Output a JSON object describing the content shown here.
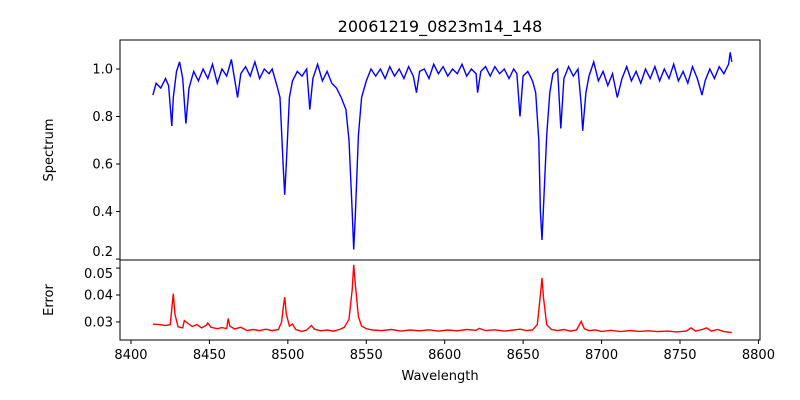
{
  "chart_data": {
    "type": "line",
    "title": "20061219_0823m14_148",
    "xlabel": "Wavelength",
    "xlim": [
      8393,
      8801
    ],
    "xticks": [
      8400,
      8450,
      8500,
      8550,
      8600,
      8650,
      8700,
      8750,
      8800
    ],
    "panels": [
      {
        "name": "spectrum",
        "ylabel": "Spectrum",
        "ylim": [
          0.196,
          1.122
        ],
        "yticks": [
          0.2,
          0.4,
          0.6,
          0.8,
          1.0
        ],
        "ytick_labels": [
          "0.2",
          "0.4",
          "0.6",
          "0.8",
          "1.0"
        ],
        "color": "#0000ff",
        "points": [
          [
            8414,
            0.89
          ],
          [
            8416,
            0.94
          ],
          [
            8419,
            0.92
          ],
          [
            8422,
            0.96
          ],
          [
            8424,
            0.93
          ],
          [
            8426,
            0.76
          ],
          [
            8427,
            0.88
          ],
          [
            8429,
            0.99
          ],
          [
            8431,
            1.03
          ],
          [
            8433,
            0.96
          ],
          [
            8435,
            0.77
          ],
          [
            8437,
            0.92
          ],
          [
            8440,
            0.99
          ],
          [
            8443,
            0.95
          ],
          [
            8446,
            1.0
          ],
          [
            8449,
            0.96
          ],
          [
            8452,
            1.02
          ],
          [
            8455,
            0.94
          ],
          [
            8458,
            1.0
          ],
          [
            8461,
            0.97
          ],
          [
            8464,
            1.04
          ],
          [
            8466,
            0.96
          ],
          [
            8468,
            0.88
          ],
          [
            8470,
            0.98
          ],
          [
            8473,
            1.01
          ],
          [
            8476,
            0.97
          ],
          [
            8479,
            1.03
          ],
          [
            8482,
            0.96
          ],
          [
            8485,
            1.0
          ],
          [
            8488,
            0.98
          ],
          [
            8490,
            1.0
          ],
          [
            8493,
            0.93
          ],
          [
            8495,
            0.88
          ],
          [
            8497,
            0.6
          ],
          [
            8498,
            0.47
          ],
          [
            8499,
            0.6
          ],
          [
            8501,
            0.88
          ],
          [
            8503,
            0.95
          ],
          [
            8506,
            0.99
          ],
          [
            8509,
            0.97
          ],
          [
            8512,
            1.0
          ],
          [
            8514,
            0.83
          ],
          [
            8516,
            0.96
          ],
          [
            8519,
            1.02
          ],
          [
            8522,
            0.95
          ],
          [
            8525,
            0.99
          ],
          [
            8528,
            0.94
          ],
          [
            8531,
            0.92
          ],
          [
            8534,
            0.88
          ],
          [
            8537,
            0.83
          ],
          [
            8539,
            0.7
          ],
          [
            8541,
            0.4
          ],
          [
            8542,
            0.24
          ],
          [
            8543,
            0.38
          ],
          [
            8545,
            0.72
          ],
          [
            8547,
            0.88
          ],
          [
            8550,
            0.95
          ],
          [
            8553,
            1.0
          ],
          [
            8556,
            0.97
          ],
          [
            8559,
            1.0
          ],
          [
            8562,
            0.96
          ],
          [
            8565,
            1.01
          ],
          [
            8568,
            0.97
          ],
          [
            8571,
            1.0
          ],
          [
            8574,
            0.96
          ],
          [
            8577,
            1.01
          ],
          [
            8580,
            0.97
          ],
          [
            8582,
            0.9
          ],
          [
            8584,
            0.99
          ],
          [
            8587,
            1.0
          ],
          [
            8590,
            0.96
          ],
          [
            8593,
            1.02
          ],
          [
            8596,
            0.98
          ],
          [
            8599,
            1.01
          ],
          [
            8602,
            0.97
          ],
          [
            8605,
            1.0
          ],
          [
            8608,
            0.98
          ],
          [
            8611,
            1.02
          ],
          [
            8614,
            0.97
          ],
          [
            8617,
            1.0
          ],
          [
            8620,
            0.98
          ],
          [
            8621,
            0.9
          ],
          [
            8623,
            0.99
          ],
          [
            8626,
            1.01
          ],
          [
            8629,
            0.97
          ],
          [
            8632,
            1.01
          ],
          [
            8635,
            0.98
          ],
          [
            8638,
            1.0
          ],
          [
            8641,
            0.96
          ],
          [
            8644,
            1.0
          ],
          [
            8646,
            0.98
          ],
          [
            8648,
            0.8
          ],
          [
            8650,
            0.97
          ],
          [
            8653,
            0.99
          ],
          [
            8656,
            0.95
          ],
          [
            8658,
            0.9
          ],
          [
            8660,
            0.7
          ],
          [
            8661,
            0.4
          ],
          [
            8662,
            0.28
          ],
          [
            8663,
            0.42
          ],
          [
            8665,
            0.72
          ],
          [
            8667,
            0.9
          ],
          [
            8669,
            0.98
          ],
          [
            8672,
            1.0
          ],
          [
            8674,
            0.75
          ],
          [
            8676,
            0.96
          ],
          [
            8679,
            1.01
          ],
          [
            8682,
            0.97
          ],
          [
            8685,
            1.0
          ],
          [
            8687,
            0.85
          ],
          [
            8688,
            0.74
          ],
          [
            8690,
            0.9
          ],
          [
            8692,
            0.97
          ],
          [
            8695,
            1.03
          ],
          [
            8698,
            0.95
          ],
          [
            8701,
            0.99
          ],
          [
            8704,
            0.93
          ],
          [
            8707,
            0.98
          ],
          [
            8710,
            0.88
          ],
          [
            8713,
            0.96
          ],
          [
            8716,
            1.01
          ],
          [
            8719,
            0.95
          ],
          [
            8722,
            0.99
          ],
          [
            8725,
            0.94
          ],
          [
            8728,
            1.0
          ],
          [
            8731,
            0.96
          ],
          [
            8734,
            1.01
          ],
          [
            8737,
            0.95
          ],
          [
            8740,
            1.0
          ],
          [
            8743,
            0.96
          ],
          [
            8746,
            1.02
          ],
          [
            8749,
            0.95
          ],
          [
            8752,
            0.99
          ],
          [
            8755,
            0.94
          ],
          [
            8758,
            1.01
          ],
          [
            8761,
            0.96
          ],
          [
            8764,
            0.89
          ],
          [
            8766,
            0.95
          ],
          [
            8769,
            1.0
          ],
          [
            8772,
            0.96
          ],
          [
            8775,
            1.01
          ],
          [
            8778,
            0.98
          ],
          [
            8781,
            1.02
          ],
          [
            8782,
            1.07
          ],
          [
            8783,
            1.03
          ]
        ]
      },
      {
        "name": "error",
        "ylabel": "Error",
        "ylim": [
          0.0233,
          0.053
        ],
        "yticks": [
          0.03,
          0.04,
          0.05
        ],
        "ytick_labels": [
          "0.03",
          "0.04",
          "0.05"
        ],
        "color": "#ff0000",
        "points": [
          [
            8414,
            0.0292
          ],
          [
            8418,
            0.029
          ],
          [
            8422,
            0.0287
          ],
          [
            8425,
            0.029
          ],
          [
            8426,
            0.035
          ],
          [
            8427,
            0.0405
          ],
          [
            8428,
            0.033
          ],
          [
            8430,
            0.0282
          ],
          [
            8433,
            0.0278
          ],
          [
            8434,
            0.0305
          ],
          [
            8436,
            0.0296
          ],
          [
            8439,
            0.0283
          ],
          [
            8442,
            0.029
          ],
          [
            8445,
            0.0278
          ],
          [
            8448,
            0.0288
          ],
          [
            8449,
            0.0296
          ],
          [
            8451,
            0.028
          ],
          [
            8455,
            0.0275
          ],
          [
            8458,
            0.0279
          ],
          [
            8461,
            0.0275
          ],
          [
            8462,
            0.0313
          ],
          [
            8463,
            0.0285
          ],
          [
            8466,
            0.0274
          ],
          [
            8470,
            0.028
          ],
          [
            8474,
            0.0268
          ],
          [
            8478,
            0.0272
          ],
          [
            8482,
            0.0268
          ],
          [
            8486,
            0.0273
          ],
          [
            8490,
            0.0268
          ],
          [
            8494,
            0.0272
          ],
          [
            8496,
            0.03
          ],
          [
            8497,
            0.035
          ],
          [
            8498,
            0.0392
          ],
          [
            8499,
            0.033
          ],
          [
            8501,
            0.0285
          ],
          [
            8503,
            0.0292
          ],
          [
            8505,
            0.0272
          ],
          [
            8509,
            0.0265
          ],
          [
            8512,
            0.027
          ],
          [
            8515,
            0.0287
          ],
          [
            8517,
            0.0273
          ],
          [
            8521,
            0.0267
          ],
          [
            8525,
            0.027
          ],
          [
            8529,
            0.0266
          ],
          [
            8533,
            0.0272
          ],
          [
            8536,
            0.028
          ],
          [
            8539,
            0.031
          ],
          [
            8541,
            0.042
          ],
          [
            8542,
            0.0512
          ],
          [
            8543,
            0.044
          ],
          [
            8545,
            0.032
          ],
          [
            8547,
            0.0285
          ],
          [
            8550,
            0.0275
          ],
          [
            8554,
            0.027
          ],
          [
            8560,
            0.0268
          ],
          [
            8566,
            0.0272
          ],
          [
            8572,
            0.0266
          ],
          [
            8578,
            0.027
          ],
          [
            8584,
            0.0267
          ],
          [
            8590,
            0.0271
          ],
          [
            8596,
            0.0266
          ],
          [
            8602,
            0.027
          ],
          [
            8608,
            0.0267
          ],
          [
            8614,
            0.0272
          ],
          [
            8620,
            0.0269
          ],
          [
            8622,
            0.0276
          ],
          [
            8626,
            0.0268
          ],
          [
            8632,
            0.0271
          ],
          [
            8638,
            0.0266
          ],
          [
            8644,
            0.027
          ],
          [
            8648,
            0.0273
          ],
          [
            8652,
            0.0268
          ],
          [
            8656,
            0.027
          ],
          [
            8659,
            0.029
          ],
          [
            8661,
            0.04
          ],
          [
            8662,
            0.0463
          ],
          [
            8663,
            0.039
          ],
          [
            8665,
            0.029
          ],
          [
            8668,
            0.0272
          ],
          [
            8672,
            0.0268
          ],
          [
            8676,
            0.0272
          ],
          [
            8680,
            0.0266
          ],
          [
            8684,
            0.027
          ],
          [
            8687,
            0.0302
          ],
          [
            8689,
            0.0275
          ],
          [
            8692,
            0.0268
          ],
          [
            8696,
            0.027
          ],
          [
            8700,
            0.0265
          ],
          [
            8706,
            0.0269
          ],
          [
            8712,
            0.0264
          ],
          [
            8718,
            0.0268
          ],
          [
            8724,
            0.0265
          ],
          [
            8730,
            0.0267
          ],
          [
            8736,
            0.0264
          ],
          [
            8742,
            0.0266
          ],
          [
            8748,
            0.0263
          ],
          [
            8754,
            0.0266
          ],
          [
            8757,
            0.0278
          ],
          [
            8760,
            0.0266
          ],
          [
            8764,
            0.0272
          ],
          [
            8767,
            0.0278
          ],
          [
            8770,
            0.0266
          ],
          [
            8774,
            0.0272
          ],
          [
            8778,
            0.0264
          ],
          [
            8781,
            0.0262
          ],
          [
            8783,
            0.0261
          ]
        ]
      }
    ]
  }
}
